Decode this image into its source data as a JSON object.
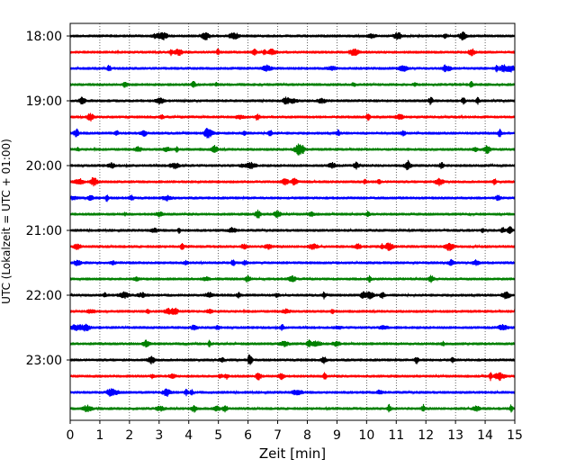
{
  "chart_data": {
    "type": "line",
    "title": "",
    "xlabel": "Zeit  [min]",
    "ylabel": "UTC (Lokalzeit = UTC + 01:00)",
    "xlim": [
      0,
      15
    ],
    "x_ticks": [
      "0",
      "1",
      "2",
      "3",
      "4",
      "5",
      "6",
      "7",
      "8",
      "9",
      "10",
      "11",
      "12",
      "13",
      "14",
      "15"
    ],
    "y_ticks": [
      "18:00",
      "19:00",
      "20:00",
      "21:00",
      "22:00",
      "23:00"
    ],
    "grid": "vertical dotted",
    "trace_colors": [
      "#000000",
      "#ff0000",
      "#0000ff",
      "#008000"
    ],
    "rows": [
      {
        "start": "18:00",
        "color": "#000000"
      },
      {
        "start": "18:15",
        "color": "#ff0000"
      },
      {
        "start": "18:30",
        "color": "#0000ff"
      },
      {
        "start": "18:45",
        "color": "#008000"
      },
      {
        "start": "19:00",
        "color": "#000000"
      },
      {
        "start": "19:15",
        "color": "#ff0000"
      },
      {
        "start": "19:30",
        "color": "#0000ff"
      },
      {
        "start": "19:45",
        "color": "#008000"
      },
      {
        "start": "20:00",
        "color": "#000000"
      },
      {
        "start": "20:15",
        "color": "#ff0000"
      },
      {
        "start": "20:30",
        "color": "#0000ff"
      },
      {
        "start": "20:45",
        "color": "#008000"
      },
      {
        "start": "21:00",
        "color": "#000000"
      },
      {
        "start": "21:15",
        "color": "#ff0000"
      },
      {
        "start": "21:30",
        "color": "#0000ff"
      },
      {
        "start": "21:45",
        "color": "#008000"
      },
      {
        "start": "22:00",
        "color": "#000000"
      },
      {
        "start": "22:15",
        "color": "#ff0000"
      },
      {
        "start": "22:30",
        "color": "#0000ff"
      },
      {
        "start": "22:45",
        "color": "#008000"
      },
      {
        "start": "23:00",
        "color": "#000000"
      },
      {
        "start": "23:15",
        "color": "#ff0000"
      },
      {
        "start": "23:30",
        "color": "#0000ff"
      },
      {
        "start": "23:45",
        "color": "#008000"
      }
    ]
  }
}
